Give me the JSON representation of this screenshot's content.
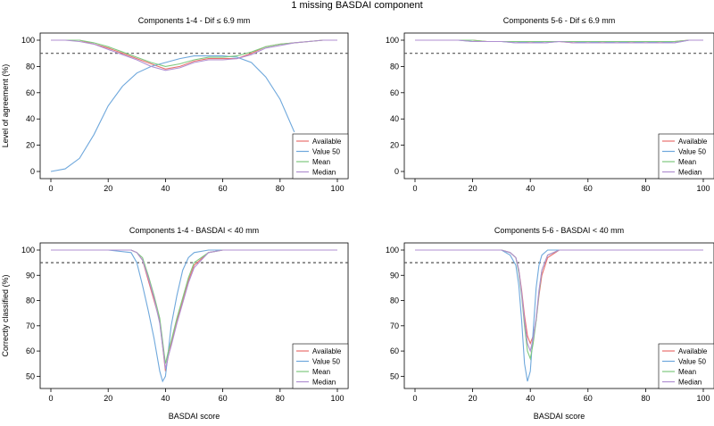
{
  "figure_title": "1 missing BASDAI component",
  "shared_xlabel": "BASDAI score",
  "chart_data": [
    {
      "type": "line",
      "title": "Components 1-4 - Dif ≤ 6.9 mm",
      "xlabel": "",
      "ylabel": "Level of agreement (%)",
      "xlim": [
        0,
        100
      ],
      "ylim": [
        0,
        100
      ],
      "xticks": [
        0,
        20,
        40,
        60,
        80,
        100
      ],
      "yticks": [
        0,
        20,
        40,
        60,
        80,
        100
      ],
      "reference_line": 90,
      "legend_position": "bottom-right",
      "x": [
        0,
        5,
        10,
        15,
        20,
        25,
        30,
        35,
        40,
        45,
        50,
        55,
        60,
        65,
        70,
        75,
        80,
        85,
        90,
        95,
        100
      ],
      "series": [
        {
          "name": "Available",
          "color": "#e8706e",
          "values": [
            100,
            100,
            100,
            97,
            94,
            90,
            86,
            82,
            78,
            80,
            84,
            86,
            86,
            86,
            90,
            95,
            97,
            98,
            99,
            100,
            100
          ]
        },
        {
          "name": "Value 50",
          "color": "#6fa8dc",
          "values": [
            0,
            2,
            10,
            28,
            50,
            65,
            75,
            80,
            83,
            86,
            88,
            88,
            88,
            87,
            83,
            72,
            55,
            30,
            null,
            null,
            null
          ]
        },
        {
          "name": "Mean",
          "color": "#7fc97f",
          "values": [
            100,
            100,
            100,
            98,
            95,
            91,
            87,
            83,
            80,
            82,
            85,
            87,
            87,
            88,
            91,
            95,
            97,
            98,
            99,
            100,
            100
          ]
        },
        {
          "name": "Median",
          "color": "#b08fd1",
          "values": [
            100,
            100,
            99,
            97,
            93,
            89,
            85,
            80,
            77,
            79,
            83,
            85,
            85,
            86,
            89,
            94,
            96,
            98,
            99,
            100,
            100
          ]
        }
      ]
    },
    {
      "type": "line",
      "title": "Components 5-6 - Dif ≤ 6.9 mm",
      "xlabel": "",
      "ylabel": "",
      "xlim": [
        0,
        100
      ],
      "ylim": [
        0,
        100
      ],
      "xticks": [
        0,
        20,
        40,
        60,
        80,
        100
      ],
      "yticks": [
        0,
        20,
        40,
        60,
        80,
        100
      ],
      "reference_line": 90,
      "legend_position": "bottom-right",
      "x": [
        0,
        5,
        10,
        15,
        20,
        25,
        30,
        35,
        40,
        45,
        50,
        55,
        60,
        65,
        70,
        75,
        80,
        85,
        90,
        95,
        100
      ],
      "series": [
        {
          "name": "Available",
          "color": "#e8706e",
          "values": [
            100,
            100,
            100,
            100,
            100,
            99,
            99,
            99,
            98,
            99,
            99,
            98,
            99,
            98,
            99,
            98,
            99,
            98,
            99,
            100,
            100
          ]
        },
        {
          "name": "Value 50",
          "color": "#6fa8dc",
          "values": [
            100,
            100,
            100,
            100,
            99,
            99,
            99,
            98,
            99,
            98,
            99,
            99,
            98,
            99,
            98,
            99,
            98,
            99,
            98,
            100,
            100
          ]
        },
        {
          "name": "Mean",
          "color": "#7fc97f",
          "values": [
            100,
            100,
            100,
            100,
            100,
            99,
            99,
            99,
            99,
            99,
            99,
            99,
            99,
            99,
            99,
            99,
            99,
            99,
            99,
            100,
            100
          ]
        },
        {
          "name": "Median",
          "color": "#b08fd1",
          "values": [
            100,
            100,
            100,
            100,
            99,
            99,
            99,
            98,
            98,
            98,
            99,
            98,
            98,
            98,
            98,
            98,
            98,
            98,
            98,
            100,
            100
          ]
        }
      ]
    },
    {
      "type": "line",
      "title": "Components 1-4 - BASDAI < 40 mm",
      "xlabel": "BASDAI score",
      "ylabel": "Correctly classified (%)",
      "xlim": [
        0,
        100
      ],
      "ylim": [
        48,
        100
      ],
      "xticks": [
        0,
        20,
        40,
        60,
        80,
        100
      ],
      "yticks": [
        50,
        60,
        70,
        80,
        90,
        100
      ],
      "reference_line": 95,
      "legend_position": "bottom-right",
      "x": [
        0,
        10,
        20,
        28,
        30,
        32,
        34,
        36,
        38,
        39,
        40,
        41,
        42,
        44,
        46,
        48,
        50,
        55,
        60,
        70,
        80,
        90,
        100
      ],
      "series": [
        {
          "name": "Available",
          "color": "#e8706e",
          "values": [
            100,
            100,
            100,
            100,
            99,
            96,
            88,
            80,
            72,
            62,
            52,
            58,
            63,
            72,
            80,
            88,
            94,
            99,
            100,
            100,
            100,
            100,
            100
          ]
        },
        {
          "name": "Value 50",
          "color": "#6fa8dc",
          "values": [
            100,
            100,
            100,
            99,
            95,
            86,
            76,
            65,
            52,
            48,
            50,
            60,
            70,
            82,
            92,
            97,
            99,
            100,
            100,
            100,
            100,
            100,
            100
          ]
        },
        {
          "name": "Mean",
          "color": "#7fc97f",
          "values": [
            100,
            100,
            100,
            100,
            99,
            97,
            90,
            82,
            73,
            64,
            55,
            60,
            64,
            73,
            81,
            89,
            95,
            99,
            100,
            100,
            100,
            100,
            100
          ]
        },
        {
          "name": "Median",
          "color": "#b08fd1",
          "values": [
            100,
            100,
            100,
            100,
            99,
            96,
            89,
            81,
            71,
            62,
            53,
            58,
            62,
            71,
            79,
            87,
            93,
            99,
            100,
            100,
            100,
            100,
            100
          ]
        }
      ]
    },
    {
      "type": "line",
      "title": "Components 5-6 - BASDAI < 40 mm",
      "xlabel": "BASDAI score",
      "ylabel": "",
      "xlim": [
        0,
        100
      ],
      "ylim": [
        48,
        100
      ],
      "xticks": [
        0,
        20,
        40,
        60,
        80,
        100
      ],
      "yticks": [
        50,
        60,
        70,
        80,
        90,
        100
      ],
      "reference_line": 95,
      "legend_position": "bottom-right",
      "x": [
        0,
        10,
        20,
        30,
        33,
        35,
        36,
        37,
        38,
        39,
        40,
        41,
        42,
        43,
        44,
        46,
        50,
        60,
        70,
        80,
        90,
        100
      ],
      "series": [
        {
          "name": "Available",
          "color": "#e8706e",
          "values": [
            100,
            100,
            100,
            100,
            99,
            97,
            92,
            84,
            74,
            66,
            63,
            66,
            72,
            82,
            90,
            97,
            100,
            100,
            100,
            100,
            100,
            100
          ]
        },
        {
          "name": "Value 50",
          "color": "#6fa8dc",
          "values": [
            100,
            100,
            100,
            100,
            98,
            94,
            86,
            72,
            55,
            48,
            52,
            68,
            85,
            94,
            98,
            100,
            100,
            100,
            100,
            100,
            100,
            100
          ]
        },
        {
          "name": "Mean",
          "color": "#7fc97f",
          "values": [
            100,
            100,
            100,
            100,
            99,
            97,
            91,
            82,
            70,
            60,
            57,
            63,
            72,
            83,
            92,
            98,
            100,
            100,
            100,
            100,
            100,
            100
          ]
        },
        {
          "name": "Median",
          "color": "#b08fd1",
          "values": [
            100,
            100,
            100,
            100,
            99,
            97,
            92,
            83,
            72,
            63,
            60,
            65,
            73,
            84,
            92,
            98,
            100,
            100,
            100,
            100,
            100,
            100
          ]
        }
      ]
    }
  ]
}
